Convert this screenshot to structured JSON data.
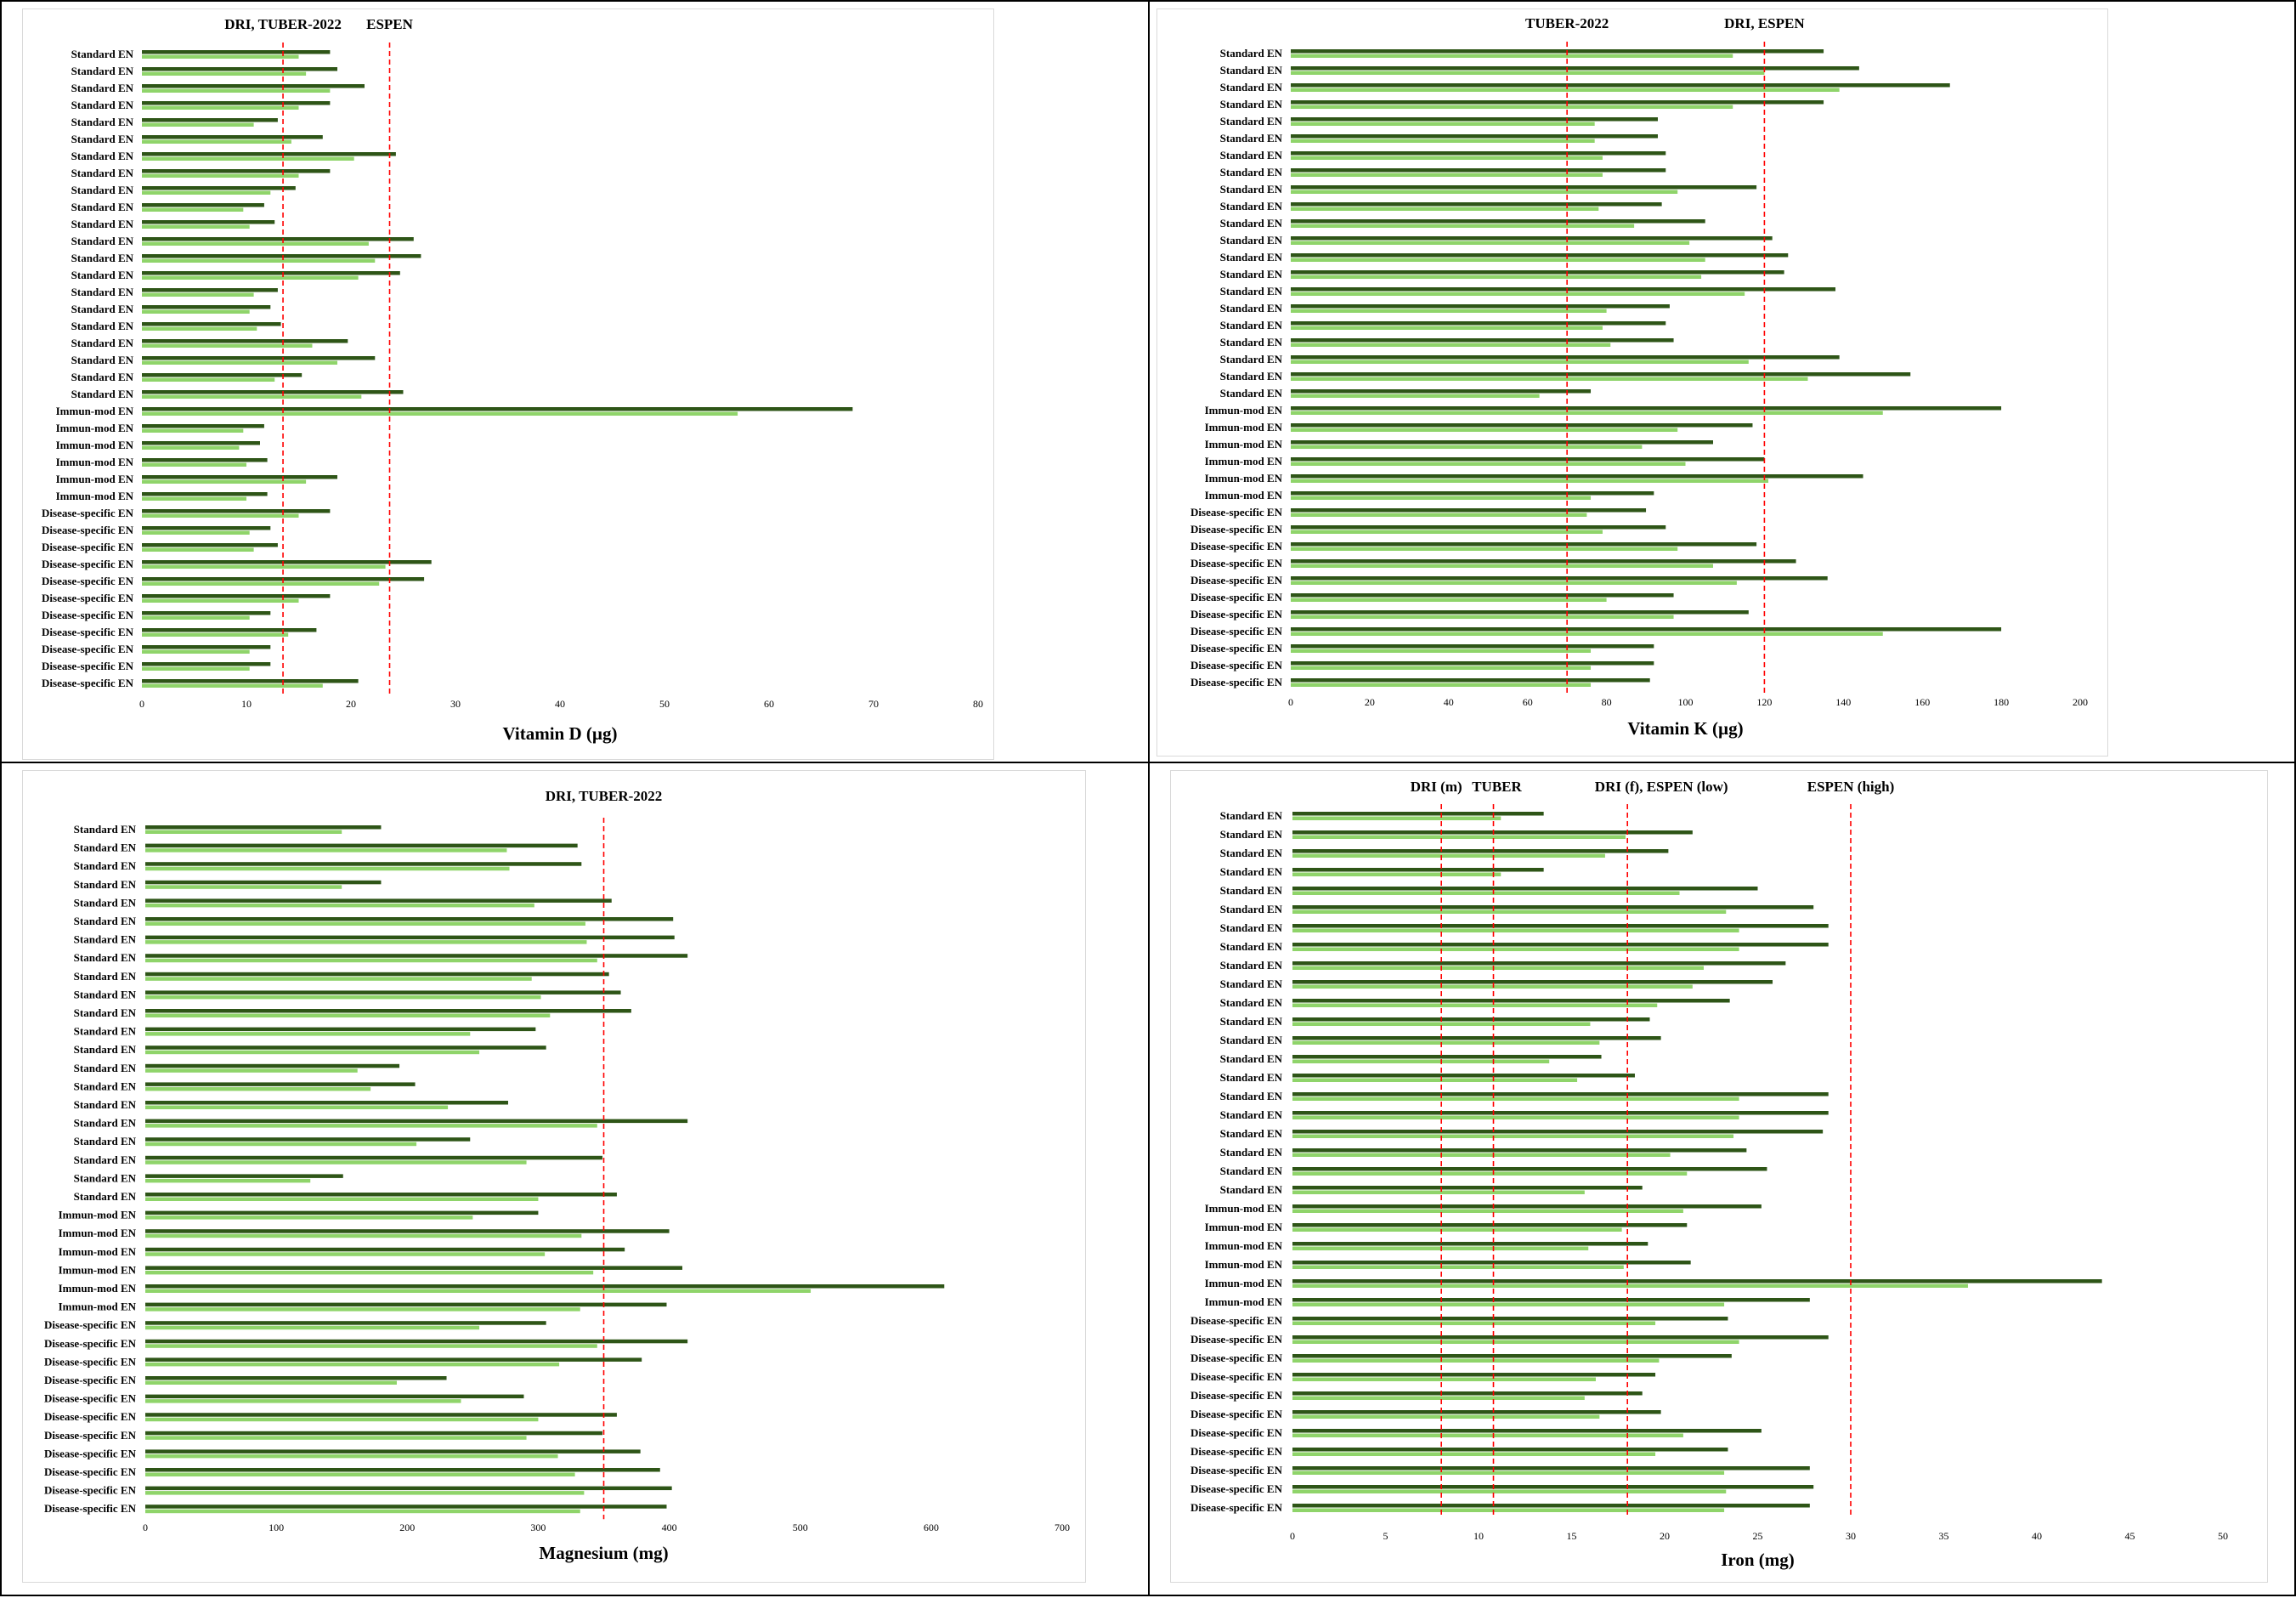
{
  "colors": {
    "dark": "#2e5517",
    "light": "#8fd46a",
    "ref_line": "#ff0000"
  },
  "chart_data": [
    {
      "type": "bar",
      "xlabel": "Vitamin D (µg)",
      "xlim": [
        0,
        80
      ],
      "xticks": [
        0,
        10,
        20,
        30,
        40,
        50,
        60,
        70,
        80
      ],
      "categories": [
        "Standard EN",
        "Standard EN",
        "Standard EN",
        "Standard EN",
        "Standard EN",
        "Standard EN",
        "Standard EN",
        "Standard EN",
        "Standard EN",
        "Standard EN",
        "Standard EN",
        "Standard EN",
        "Standard EN",
        "Standard EN",
        "Standard EN",
        "Standard EN",
        "Standard EN",
        "Standard EN",
        "Standard EN",
        "Standard EN",
        "Standard EN",
        "Immun-mod EN",
        "Immun-mod EN",
        "Immun-mod EN",
        "Immun-mod EN",
        "Immun-mod EN",
        "Immun-mod EN",
        "Disease-specific EN",
        "Disease-specific EN",
        "Disease-specific EN",
        "Disease-specific EN",
        "Disease-specific EN",
        "Disease-specific EN",
        "Disease-specific EN",
        "Disease-specific EN",
        "Disease-specific EN",
        "Disease-specific EN",
        "Disease-specific EN"
      ],
      "series": [
        {
          "values": [
            18.0,
            18.7,
            21.3,
            18.0,
            13.0,
            17.3,
            24.3,
            18.0,
            14.7,
            11.7,
            12.7,
            26.0,
            26.7,
            24.7,
            13.0,
            12.3,
            13.3,
            19.7,
            22.3,
            15.3,
            25.0,
            68.0,
            11.7,
            11.3,
            12.0,
            18.7,
            12.0,
            18.0,
            12.3,
            13.0,
            27.7,
            27.0,
            18.0,
            12.3,
            16.7,
            12.3,
            12.3,
            20.7
          ]
        },
        {
          "values": [
            15.0,
            15.7,
            18.0,
            15.0,
            10.7,
            14.3,
            20.3,
            15.0,
            12.3,
            9.7,
            10.3,
            21.7,
            22.3,
            20.7,
            10.7,
            10.3,
            11.0,
            16.3,
            18.7,
            12.7,
            21.0,
            57.0,
            9.7,
            9.3,
            10.0,
            15.7,
            10.0,
            15.0,
            10.3,
            10.7,
            23.3,
            22.7,
            15.0,
            10.3,
            14.0,
            10.3,
            10.3,
            17.3
          ]
        }
      ],
      "reference_lines": [
        {
          "label": "DRI, TUBER-2022",
          "x": 13.5
        },
        {
          "label": "ESPEN",
          "x": 23.7
        }
      ]
    },
    {
      "type": "bar",
      "xlabel": "Vitamin K (µg)",
      "xlim": [
        0,
        200
      ],
      "xticks": [
        0,
        20,
        40,
        60,
        80,
        100,
        120,
        140,
        160,
        180,
        200
      ],
      "categories": [
        "Standard EN",
        "Standard EN",
        "Standard EN",
        "Standard EN",
        "Standard EN",
        "Standard EN",
        "Standard EN",
        "Standard EN",
        "Standard EN",
        "Standard EN",
        "Standard EN",
        "Standard EN",
        "Standard EN",
        "Standard EN",
        "Standard EN",
        "Standard EN",
        "Standard EN",
        "Standard EN",
        "Standard EN",
        "Standard EN",
        "Standard EN",
        "Immun-mod EN",
        "Immun-mod EN",
        "Immun-mod EN",
        "Immun-mod EN",
        "Immun-mod EN",
        "Immun-mod EN",
        "Disease-specific EN",
        "Disease-specific EN",
        "Disease-specific EN",
        "Disease-specific EN",
        "Disease-specific EN",
        "Disease-specific EN",
        "Disease-specific EN",
        "Disease-specific EN",
        "Disease-specific EN",
        "Disease-specific EN",
        "Disease-specific EN"
      ],
      "series": [
        {
          "values": [
            135,
            144,
            167,
            135,
            93,
            93,
            95,
            95,
            118,
            94,
            105,
            122,
            126,
            125,
            138,
            96,
            95,
            97,
            139,
            157,
            76,
            180,
            117,
            107,
            120,
            145,
            92,
            90,
            95,
            118,
            128,
            136,
            97,
            116,
            180,
            92,
            92,
            91
          ]
        },
        {
          "values": [
            112,
            120,
            139,
            112,
            77,
            77,
            79,
            79,
            98,
            78,
            87,
            101,
            105,
            104,
            115,
            80,
            79,
            81,
            116,
            131,
            63,
            150,
            98,
            89,
            100,
            121,
            76,
            75,
            79,
            98,
            107,
            113,
            80,
            97,
            150,
            76,
            76,
            76
          ]
        }
      ],
      "reference_lines": [
        {
          "label": "TUBER-2022",
          "x": 70
        },
        {
          "label": "DRI, ESPEN",
          "x": 120
        }
      ]
    },
    {
      "type": "bar",
      "xlabel": "Magnesium (mg)",
      "xlim": [
        0,
        700
      ],
      "xticks": [
        0,
        100,
        200,
        300,
        400,
        500,
        600,
        700
      ],
      "categories": [
        "Standard EN",
        "Standard EN",
        "Standard EN",
        "Standard EN",
        "Standard EN",
        "Standard EN",
        "Standard EN",
        "Standard EN",
        "Standard EN",
        "Standard EN",
        "Standard EN",
        "Standard EN",
        "Standard EN",
        "Standard EN",
        "Standard EN",
        "Standard EN",
        "Standard EN",
        "Standard EN",
        "Standard EN",
        "Standard EN",
        "Standard EN",
        "Immun-mod EN",
        "Immun-mod EN",
        "Immun-mod EN",
        "Immun-mod EN",
        "Immun-mod EN",
        "Immun-mod EN",
        "Disease-specific EN",
        "Disease-specific EN",
        "Disease-specific EN",
        "Disease-specific EN",
        "Disease-specific EN",
        "Disease-specific EN",
        "Disease-specific EN",
        "Disease-specific EN",
        "Disease-specific EN",
        "Disease-specific EN",
        "Disease-specific EN"
      ],
      "series": [
        {
          "values": [
            180,
            330,
            333,
            180,
            356,
            403,
            404,
            414,
            354,
            363,
            371,
            298,
            306,
            194,
            206,
            277,
            414,
            248,
            349,
            151,
            360,
            300,
            400,
            366,
            410,
            610,
            398,
            306,
            414,
            379,
            230,
            289,
            360,
            349,
            378,
            393,
            402,
            398
          ]
        },
        {
          "values": [
            150,
            276,
            278,
            150,
            297,
            336,
            337,
            345,
            295,
            302,
            309,
            248,
            255,
            162,
            172,
            231,
            345,
            207,
            291,
            126,
            300,
            250,
            333,
            305,
            342,
            508,
            332,
            255,
            345,
            316,
            192,
            241,
            300,
            291,
            315,
            328,
            335,
            332
          ]
        }
      ],
      "reference_lines": [
        {
          "label": "DRI, TUBER-2022",
          "x": 350
        }
      ]
    },
    {
      "type": "bar",
      "xlabel": "Iron (mg)",
      "xlim": [
        0,
        50
      ],
      "xticks": [
        0,
        5,
        10,
        15,
        20,
        25,
        30,
        35,
        40,
        45,
        50
      ],
      "categories": [
        "Standard EN",
        "Standard EN",
        "Standard EN",
        "Standard EN",
        "Standard EN",
        "Standard EN",
        "Standard EN",
        "Standard EN",
        "Standard EN",
        "Standard EN",
        "Standard EN",
        "Standard EN",
        "Standard EN",
        "Standard EN",
        "Standard EN",
        "Standard EN",
        "Standard EN",
        "Standard EN",
        "Standard EN",
        "Standard EN",
        "Standard EN",
        "Immun-mod EN",
        "Immun-mod EN",
        "Immun-mod EN",
        "Immun-mod EN",
        "Immun-mod EN",
        "Immun-mod EN",
        "Disease-specific EN",
        "Disease-specific EN",
        "Disease-specific EN",
        "Disease-specific EN",
        "Disease-specific EN",
        "Disease-specific EN",
        "Disease-specific EN",
        "Disease-specific EN",
        "Disease-specific EN",
        "Disease-specific EN",
        "Disease-specific EN"
      ],
      "series": [
        {
          "values": [
            13.5,
            21.5,
            20.2,
            13.5,
            25.0,
            28.0,
            28.8,
            28.8,
            26.5,
            25.8,
            23.5,
            19.2,
            19.8,
            16.6,
            18.4,
            28.8,
            28.8,
            28.5,
            24.4,
            25.5,
            18.8,
            25.2,
            21.2,
            19.1,
            21.4,
            43.5,
            27.8,
            23.4,
            28.8,
            23.6,
            19.5,
            18.8,
            19.8,
            25.2,
            23.4,
            27.8,
            28.0,
            27.8
          ]
        },
        {
          "values": [
            11.2,
            17.9,
            16.8,
            11.2,
            20.8,
            23.3,
            24.0,
            24.0,
            22.1,
            21.5,
            19.6,
            16.0,
            16.5,
            13.8,
            15.3,
            24.0,
            24.0,
            23.7,
            20.3,
            21.2,
            15.7,
            21.0,
            17.7,
            15.9,
            17.8,
            36.3,
            23.2,
            19.5,
            24.0,
            19.7,
            16.3,
            15.7,
            16.5,
            21.0,
            19.5,
            23.2,
            23.3,
            23.2
          ]
        }
      ],
      "reference_lines": [
        {
          "label": "DRI (m)",
          "x": 8
        },
        {
          "label": "TUBER",
          "x": 10.8
        },
        {
          "label": "DRI (f), ESPEN (low)",
          "x": 18
        },
        {
          "label": "ESPEN (high)",
          "x": 30
        }
      ]
    }
  ]
}
